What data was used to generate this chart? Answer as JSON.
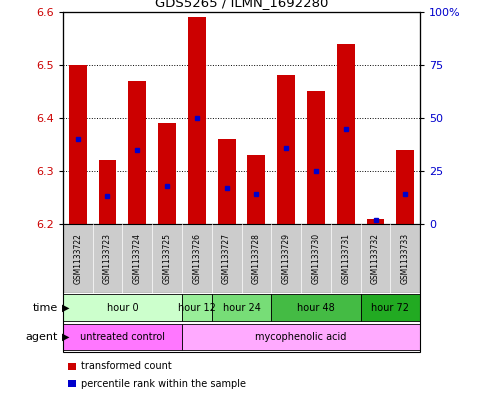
{
  "title": "GDS5265 / ILMN_1692280",
  "samples": [
    "GSM1133722",
    "GSM1133723",
    "GSM1133724",
    "GSM1133725",
    "GSM1133726",
    "GSM1133727",
    "GSM1133728",
    "GSM1133729",
    "GSM1133730",
    "GSM1133731",
    "GSM1133732",
    "GSM1133733"
  ],
  "transformed_counts": [
    6.5,
    6.32,
    6.47,
    6.39,
    6.59,
    6.36,
    6.33,
    6.48,
    6.45,
    6.54,
    6.21,
    6.34
  ],
  "percentile_ranks": [
    40,
    13,
    35,
    18,
    50,
    17,
    14,
    36,
    25,
    45,
    2,
    14
  ],
  "ylim_left": [
    6.2,
    6.6
  ],
  "ylim_right": [
    0,
    100
  ],
  "yticks_left": [
    6.2,
    6.3,
    6.4,
    6.5,
    6.6
  ],
  "yticks_right": [
    0,
    25,
    50,
    75,
    100
  ],
  "bar_color": "#cc0000",
  "dot_color": "#0000cc",
  "baseline": 6.2,
  "time_groups": [
    {
      "label": "hour 0",
      "start": 0,
      "end": 4,
      "color": "#ccffcc"
    },
    {
      "label": "hour 12",
      "start": 4,
      "end": 5,
      "color": "#99ee99"
    },
    {
      "label": "hour 24",
      "start": 5,
      "end": 7,
      "color": "#77dd77"
    },
    {
      "label": "hour 48",
      "start": 7,
      "end": 10,
      "color": "#44bb44"
    },
    {
      "label": "hour 72",
      "start": 10,
      "end": 12,
      "color": "#22aa22"
    }
  ],
  "agent_groups": [
    {
      "label": "untreated control",
      "start": 0,
      "end": 4,
      "color": "#ff77ff"
    },
    {
      "label": "mycophenolic acid",
      "start": 4,
      "end": 12,
      "color": "#ffaaff"
    }
  ],
  "tick_label_color_left": "#cc0000",
  "tick_label_color_right": "#0000cc",
  "sample_bg_color": "#cccccc",
  "legend_items": [
    {
      "color": "#cc0000",
      "label": "transformed count"
    },
    {
      "color": "#0000cc",
      "label": "percentile rank within the sample"
    }
  ]
}
